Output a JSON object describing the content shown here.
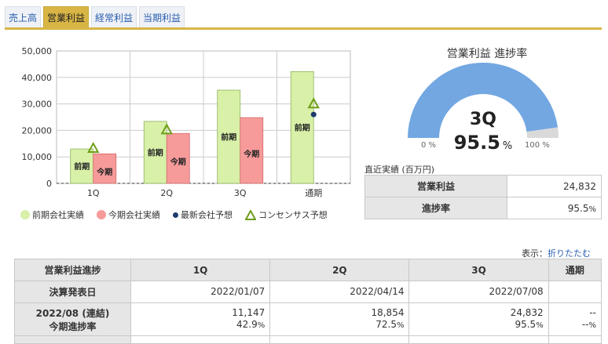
{
  "tabs": [
    {
      "label": "売上高",
      "active": false
    },
    {
      "label": "営業利益",
      "active": true
    },
    {
      "label": "経常利益",
      "active": false
    },
    {
      "label": "当期利益",
      "active": false
    }
  ],
  "chart_data": {
    "type": "bar",
    "categories": [
      "1Q",
      "2Q",
      "3Q",
      "通期"
    ],
    "ylim": [
      0,
      50000
    ],
    "yticks": [
      "0",
      "10,000",
      "20,000",
      "30,000",
      "40,000",
      "50,000"
    ],
    "series": [
      {
        "name": "前期会社実績",
        "values": [
          13000,
          23400,
          35200,
          42200
        ],
        "bar_label": "前期",
        "color": "#d8f0a8"
      },
      {
        "name": "今期会社実績",
        "values": [
          11147,
          18854,
          24832,
          null
        ],
        "bar_label": "今期",
        "color": "#f69a9a"
      }
    ],
    "forecast": {
      "name": "最新会社予想",
      "values": [
        null,
        null,
        null,
        26000
      ],
      "color": "#1f3a6e"
    },
    "consensus": {
      "name": "コンセンサス予想",
      "values": [
        13000,
        20000,
        null,
        29800
      ],
      "color": "#6e9e1a"
    }
  },
  "gauge": {
    "title": "営業利益 進捗率",
    "quarter": "3Q",
    "value": "95.5",
    "unit": "%",
    "fraction": 0.955,
    "min_label": "0 %",
    "max_label": "100 %",
    "fill_color": "#72a7e2",
    "track_color": "#d9d9d9"
  },
  "recent": {
    "label": "直近実績 (百万円)",
    "rows": [
      {
        "header": "営業利益",
        "value": "24,832",
        "unit": ""
      },
      {
        "header": "進捗率",
        "value": "95.5",
        "unit": "%"
      }
    ]
  },
  "display": {
    "prefix": "表示：",
    "link": "折りたたむ"
  },
  "table": {
    "corner": "営業利益進捗",
    "columns": [
      "1Q",
      "2Q",
      "3Q",
      "通期"
    ],
    "dates_label": "決算発表日",
    "dates": [
      "2022/01/07",
      "2022/04/14",
      "2022/07/08",
      ""
    ],
    "period_label_1": "2022/08 (連結)",
    "period_label_2": "今期進捗率",
    "values": [
      "11,147",
      "18,854",
      "24,832",
      "--"
    ],
    "progress": [
      "42.9",
      "72.5",
      "95.5",
      "--"
    ],
    "progress_unit": "%"
  }
}
